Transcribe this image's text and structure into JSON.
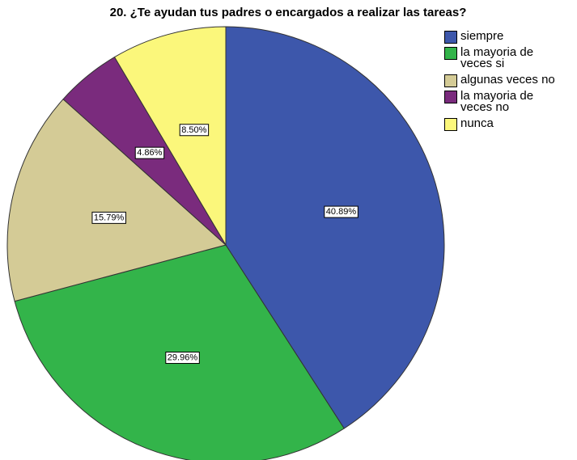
{
  "chart_data": {
    "type": "pie",
    "title": "20. ¿Te ayudan tus padres o encargados a realizar las  tareas?",
    "categories": [
      "siempre",
      "la mayoria de veces si",
      "algunas veces no",
      "la mayoria de veces no",
      "nunca"
    ],
    "values": [
      40.89,
      29.96,
      15.79,
      4.86,
      8.5
    ],
    "value_labels": [
      "40.89%",
      "29.96%",
      "15.79%",
      "4.86%",
      "8.50%"
    ],
    "colors": [
      "#3d57ab",
      "#33b44a",
      "#d4cb96",
      "#7a2b7d",
      "#fbf77b"
    ],
    "legend": "right"
  }
}
